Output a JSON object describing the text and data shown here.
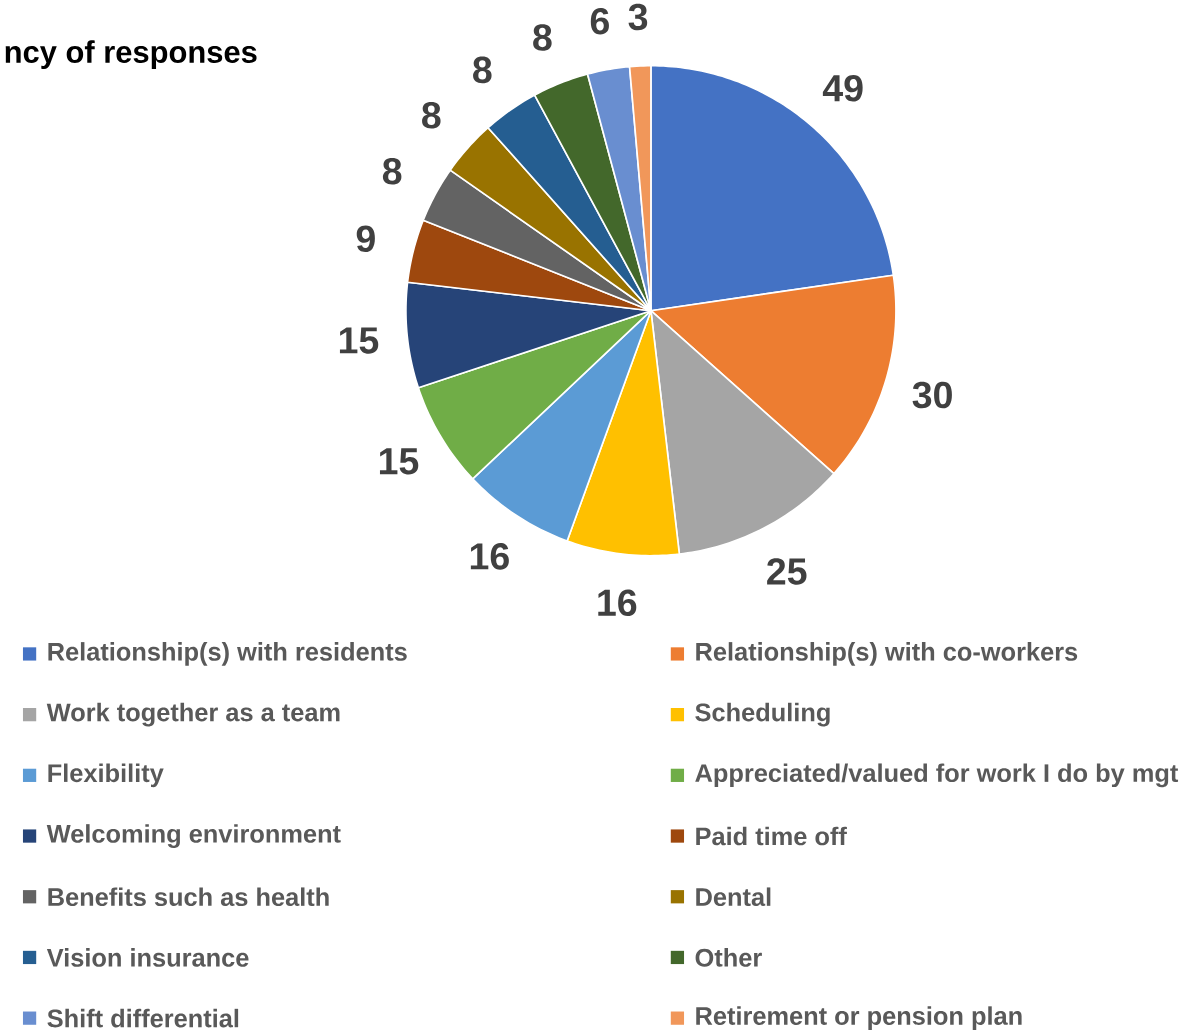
{
  "chart_data": {
    "type": "pie",
    "title": "ncy of responses",
    "categories": [
      "Relationship(s) with residents",
      "Relationship(s) with co-workers",
      "Work together as a team",
      "Scheduling",
      "Flexibility",
      "Appreciated/valued for work I do by mgt",
      "Welcoming environment",
      "Paid time off",
      "Benefits such as health",
      "Dental",
      "Vision insurance",
      "Other",
      "Shift differential",
      "Retirement or pension plan"
    ],
    "values": [
      49,
      30,
      25,
      16,
      16,
      15,
      15,
      9,
      8,
      8,
      8,
      8,
      6,
      3
    ],
    "colors": [
      "#4472c4",
      "#ed7d31",
      "#a5a5a5",
      "#ffc000",
      "#5b9bd5",
      "#70ad47",
      "#264478",
      "#9e480e",
      "#636363",
      "#997300",
      "#255e91",
      "#43682b",
      "#698ed0",
      "#f1975a"
    ],
    "data_labels": true,
    "legend": "bottom"
  }
}
